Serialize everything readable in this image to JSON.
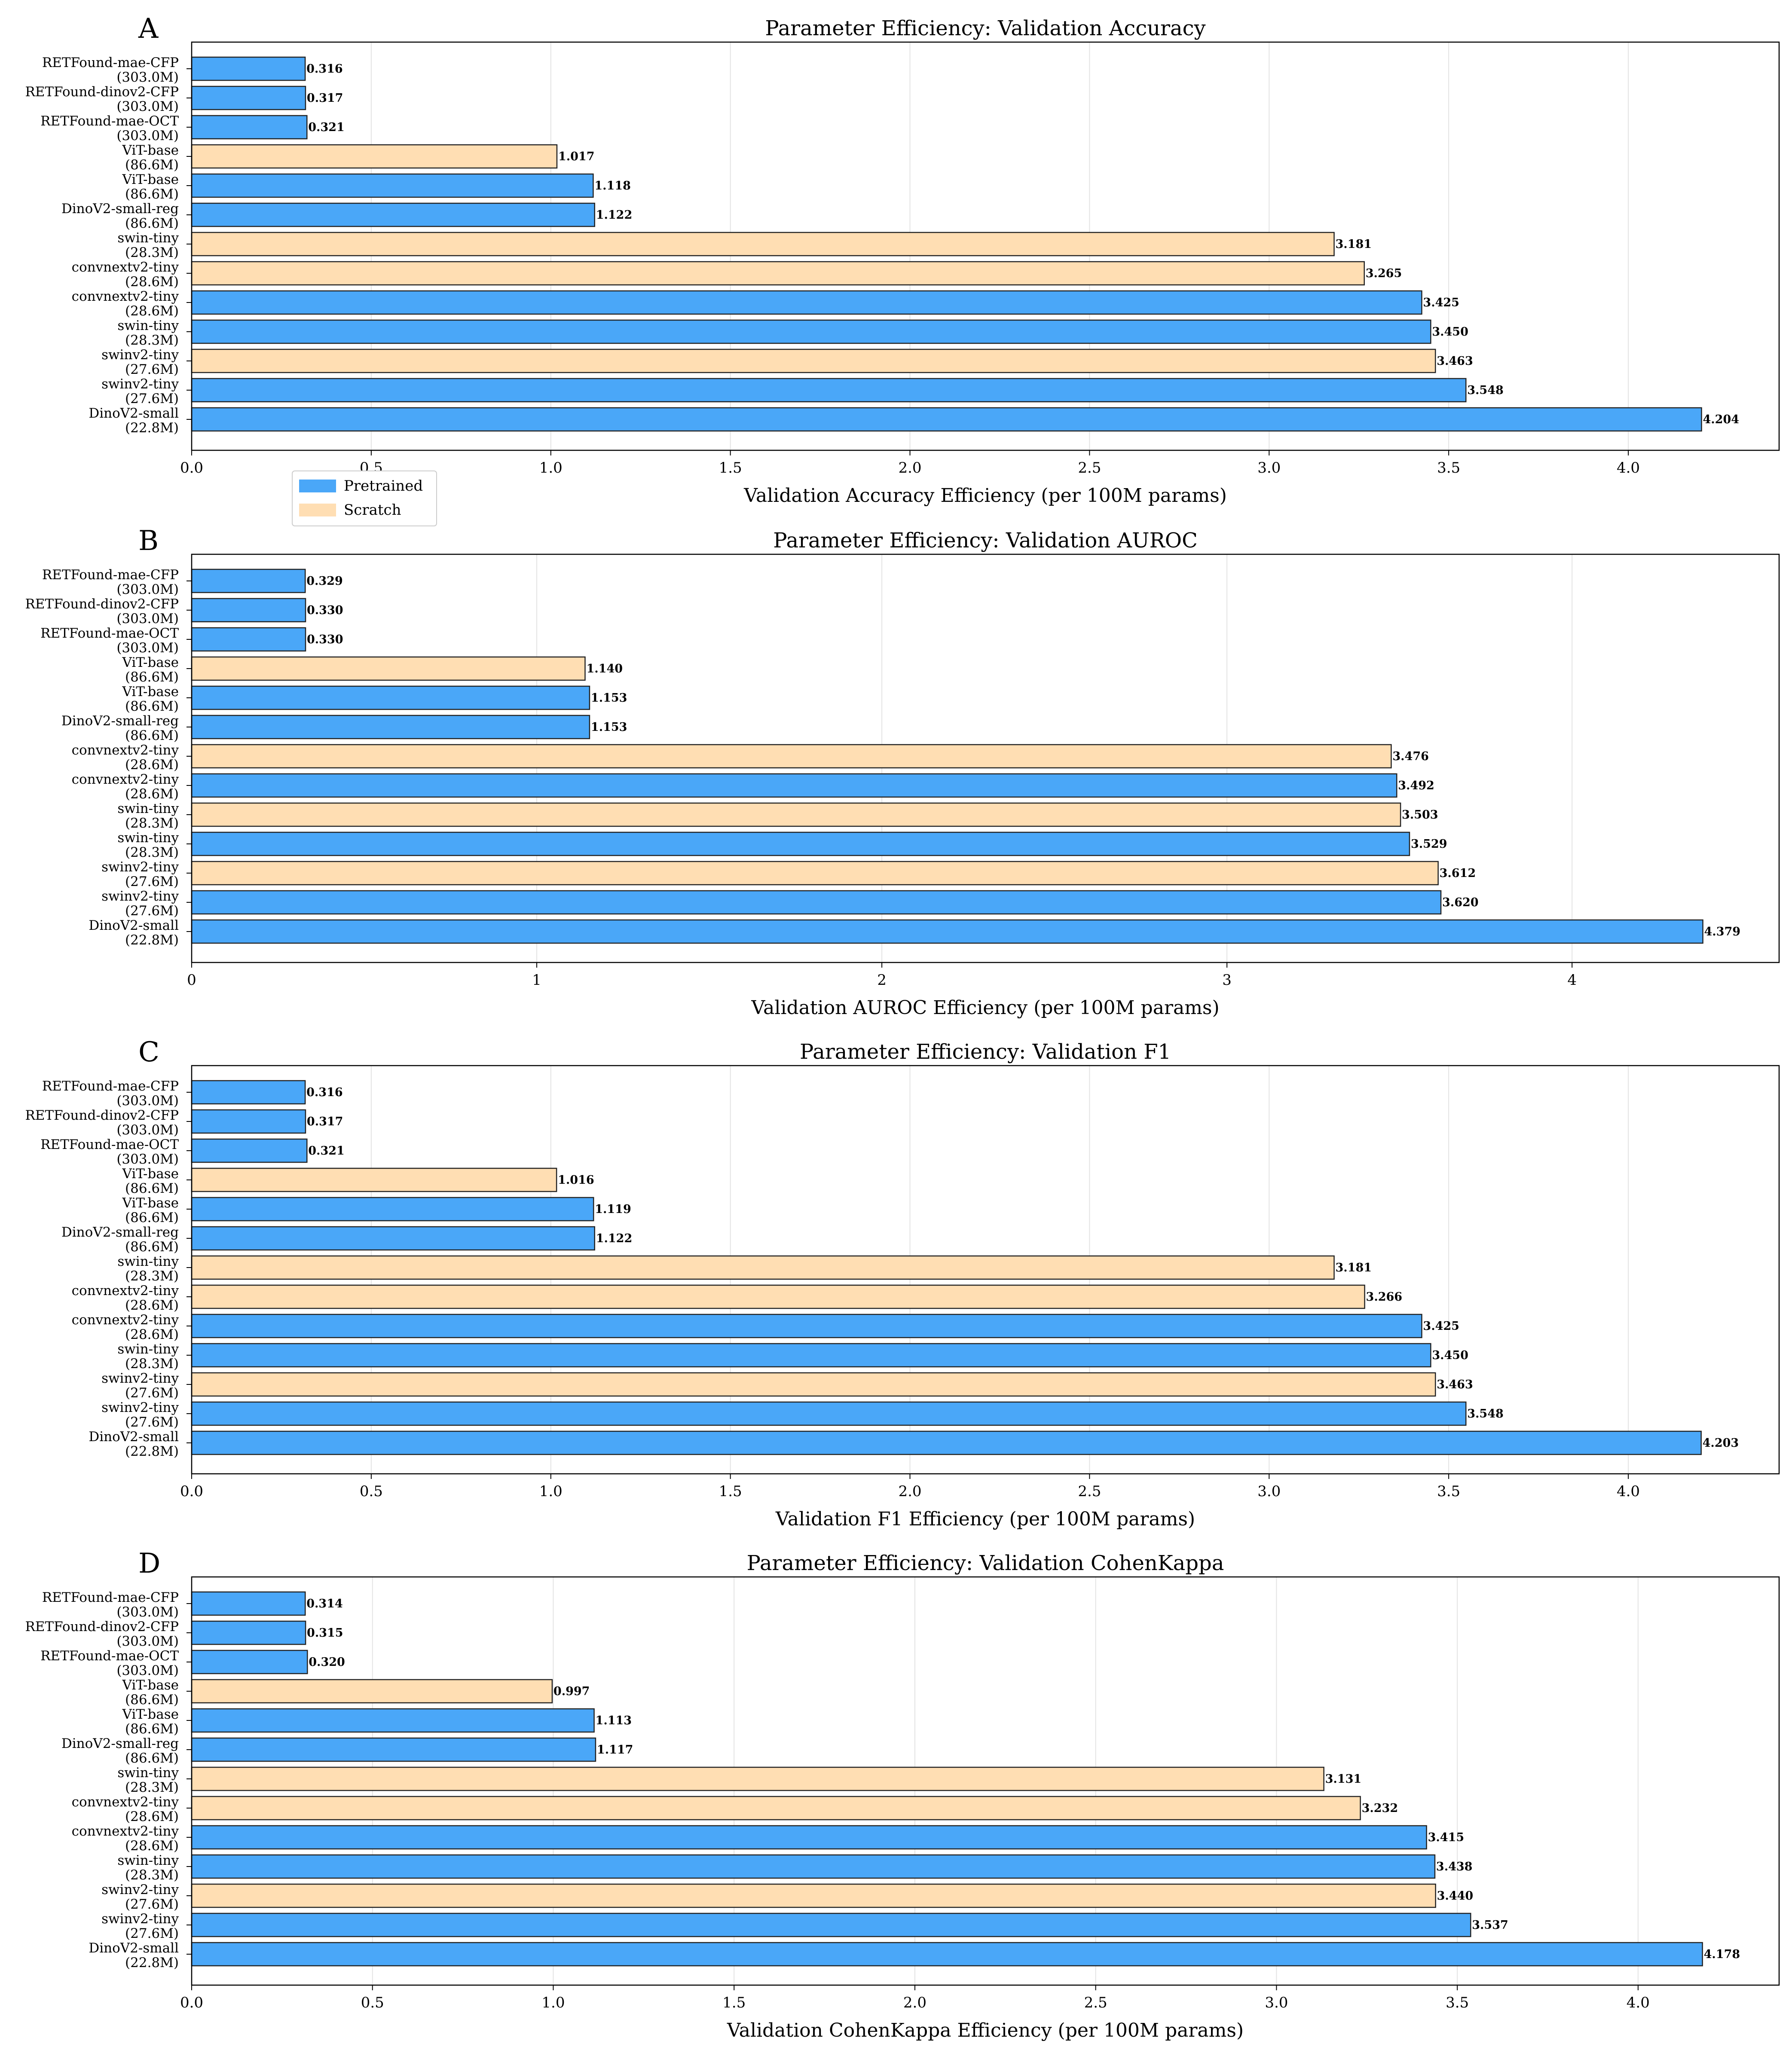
{
  "colors": {
    "pretrained": "#4AA7F8",
    "scratch": "#FFDEB3",
    "edge": "#222222",
    "grid": "#e3e3e3"
  },
  "legend": {
    "items": [
      {
        "label": "Pretrained",
        "type": "pretrained"
      },
      {
        "label": "Scratch",
        "type": "scratch"
      }
    ]
  },
  "chart_data": [
    {
      "type": "bar",
      "orientation": "horizontal",
      "panel": "A",
      "title": "Parameter Efficiency: Validation Accuracy",
      "xlabel": "Validation Accuracy Efficiency (per 100M params)",
      "xlim": [
        0,
        4.42
      ],
      "xticks": [
        0,
        0.5,
        1,
        1.5,
        2,
        2.5,
        3,
        3.5,
        4
      ],
      "xtick_labels": [
        "0.0",
        "0.5",
        "1.0",
        "1.5",
        "2.0",
        "2.5",
        "3.0",
        "3.5",
        "4.0"
      ],
      "bars": [
        {
          "name": "RETFound-mae-CFP",
          "params": "(303.0M)",
          "type": "pretrained",
          "value": 0.316,
          "label": "0.316"
        },
        {
          "name": "RETFound-dinov2-CFP",
          "params": "(303.0M)",
          "type": "pretrained",
          "value": 0.317,
          "label": "0.317"
        },
        {
          "name": "RETFound-mae-OCT",
          "params": "(303.0M)",
          "type": "pretrained",
          "value": 0.321,
          "label": "0.321"
        },
        {
          "name": "ViT-base",
          "params": "(86.6M)",
          "type": "scratch",
          "value": 1.017,
          "label": "1.017"
        },
        {
          "name": "ViT-base",
          "params": "(86.6M)",
          "type": "pretrained",
          "value": 1.118,
          "label": "1.118"
        },
        {
          "name": "DinoV2-small-reg",
          "params": "(86.6M)",
          "type": "pretrained",
          "value": 1.122,
          "label": "1.122"
        },
        {
          "name": "swin-tiny",
          "params": "(28.3M)",
          "type": "scratch",
          "value": 3.181,
          "label": "3.181"
        },
        {
          "name": "convnextv2-tiny",
          "params": "(28.6M)",
          "type": "scratch",
          "value": 3.265,
          "label": "3.265"
        },
        {
          "name": "convnextv2-tiny",
          "params": "(28.6M)",
          "type": "pretrained",
          "value": 3.425,
          "label": "3.425"
        },
        {
          "name": "swin-tiny",
          "params": "(28.3M)",
          "type": "pretrained",
          "value": 3.45,
          "label": "3.450"
        },
        {
          "name": "swinv2-tiny",
          "params": "(27.6M)",
          "type": "scratch",
          "value": 3.463,
          "label": "3.463"
        },
        {
          "name": "swinv2-tiny",
          "params": "(27.6M)",
          "type": "pretrained",
          "value": 3.548,
          "label": "3.548"
        },
        {
          "name": "DinoV2-small",
          "params": "(22.8M)",
          "type": "pretrained",
          "value": 4.204,
          "label": "4.204"
        }
      ]
    },
    {
      "type": "bar",
      "orientation": "horizontal",
      "panel": "B",
      "title": "Parameter Efficiency: Validation AUROC",
      "xlabel": "Validation AUROC Efficiency (per 100M params)",
      "xlim": [
        0,
        4.6
      ],
      "xticks": [
        0,
        1,
        2,
        3,
        4
      ],
      "xtick_labels": [
        "0",
        "1",
        "2",
        "3",
        "4"
      ],
      "bars": [
        {
          "name": "RETFound-mae-CFP",
          "params": "(303.0M)",
          "type": "pretrained",
          "value": 0.329,
          "label": "0.329"
        },
        {
          "name": "RETFound-dinov2-CFP",
          "params": "(303.0M)",
          "type": "pretrained",
          "value": 0.33,
          "label": "0.330"
        },
        {
          "name": "RETFound-mae-OCT",
          "params": "(303.0M)",
          "type": "pretrained",
          "value": 0.33,
          "label": "0.330"
        },
        {
          "name": "ViT-base",
          "params": "(86.6M)",
          "type": "scratch",
          "value": 1.14,
          "label": "1.140"
        },
        {
          "name": "ViT-base",
          "params": "(86.6M)",
          "type": "pretrained",
          "value": 1.153,
          "label": "1.153"
        },
        {
          "name": "DinoV2-small-reg",
          "params": "(86.6M)",
          "type": "pretrained",
          "value": 1.153,
          "label": "1.153"
        },
        {
          "name": "convnextv2-tiny",
          "params": "(28.6M)",
          "type": "scratch",
          "value": 3.476,
          "label": "3.476"
        },
        {
          "name": "convnextv2-tiny",
          "params": "(28.6M)",
          "type": "pretrained",
          "value": 3.492,
          "label": "3.492"
        },
        {
          "name": "swin-tiny",
          "params": "(28.3M)",
          "type": "scratch",
          "value": 3.503,
          "label": "3.503"
        },
        {
          "name": "swin-tiny",
          "params": "(28.3M)",
          "type": "pretrained",
          "value": 3.529,
          "label": "3.529"
        },
        {
          "name": "swinv2-tiny",
          "params": "(27.6M)",
          "type": "scratch",
          "value": 3.612,
          "label": "3.612"
        },
        {
          "name": "swinv2-tiny",
          "params": "(27.6M)",
          "type": "pretrained",
          "value": 3.62,
          "label": "3.620"
        },
        {
          "name": "DinoV2-small",
          "params": "(22.8M)",
          "type": "pretrained",
          "value": 4.379,
          "label": "4.379"
        }
      ]
    },
    {
      "type": "bar",
      "orientation": "horizontal",
      "panel": "C",
      "title": "Parameter Efficiency: Validation F1",
      "xlabel": "Validation F1 Efficiency (per 100M params)",
      "xlim": [
        0,
        4.42
      ],
      "xticks": [
        0,
        0.5,
        1,
        1.5,
        2,
        2.5,
        3,
        3.5,
        4
      ],
      "xtick_labels": [
        "0.0",
        "0.5",
        "1.0",
        "1.5",
        "2.0",
        "2.5",
        "3.0",
        "3.5",
        "4.0"
      ],
      "bars": [
        {
          "name": "RETFound-mae-CFP",
          "params": "(303.0M)",
          "type": "pretrained",
          "value": 0.316,
          "label": "0.316"
        },
        {
          "name": "RETFound-dinov2-CFP",
          "params": "(303.0M)",
          "type": "pretrained",
          "value": 0.317,
          "label": "0.317"
        },
        {
          "name": "RETFound-mae-OCT",
          "params": "(303.0M)",
          "type": "pretrained",
          "value": 0.321,
          "label": "0.321"
        },
        {
          "name": "ViT-base",
          "params": "(86.6M)",
          "type": "scratch",
          "value": 1.016,
          "label": "1.016"
        },
        {
          "name": "ViT-base",
          "params": "(86.6M)",
          "type": "pretrained",
          "value": 1.119,
          "label": "1.119"
        },
        {
          "name": "DinoV2-small-reg",
          "params": "(86.6M)",
          "type": "pretrained",
          "value": 1.122,
          "label": "1.122"
        },
        {
          "name": "swin-tiny",
          "params": "(28.3M)",
          "type": "scratch",
          "value": 3.181,
          "label": "3.181"
        },
        {
          "name": "convnextv2-tiny",
          "params": "(28.6M)",
          "type": "scratch",
          "value": 3.266,
          "label": "3.266"
        },
        {
          "name": "convnextv2-tiny",
          "params": "(28.6M)",
          "type": "pretrained",
          "value": 3.425,
          "label": "3.425"
        },
        {
          "name": "swin-tiny",
          "params": "(28.3M)",
          "type": "pretrained",
          "value": 3.45,
          "label": "3.450"
        },
        {
          "name": "swinv2-tiny",
          "params": "(27.6M)",
          "type": "scratch",
          "value": 3.463,
          "label": "3.463"
        },
        {
          "name": "swinv2-tiny",
          "params": "(27.6M)",
          "type": "pretrained",
          "value": 3.548,
          "label": "3.548"
        },
        {
          "name": "DinoV2-small",
          "params": "(22.8M)",
          "type": "pretrained",
          "value": 4.203,
          "label": "4.203"
        }
      ]
    },
    {
      "type": "bar",
      "orientation": "horizontal",
      "panel": "D",
      "title": "Parameter Efficiency: Validation CohenKappa",
      "xlabel": "Validation CohenKappa Efficiency (per 100M params)",
      "xlim": [
        0,
        4.39
      ],
      "xticks": [
        0,
        0.5,
        1,
        1.5,
        2,
        2.5,
        3,
        3.5,
        4
      ],
      "xtick_labels": [
        "0.0",
        "0.5",
        "1.0",
        "1.5",
        "2.0",
        "2.5",
        "3.0",
        "3.5",
        "4.0"
      ],
      "bars": [
        {
          "name": "RETFound-mae-CFP",
          "params": "(303.0M)",
          "type": "pretrained",
          "value": 0.314,
          "label": "0.314"
        },
        {
          "name": "RETFound-dinov2-CFP",
          "params": "(303.0M)",
          "type": "pretrained",
          "value": 0.315,
          "label": "0.315"
        },
        {
          "name": "RETFound-mae-OCT",
          "params": "(303.0M)",
          "type": "pretrained",
          "value": 0.32,
          "label": "0.320"
        },
        {
          "name": "ViT-base",
          "params": "(86.6M)",
          "type": "scratch",
          "value": 0.997,
          "label": "0.997"
        },
        {
          "name": "ViT-base",
          "params": "(86.6M)",
          "type": "pretrained",
          "value": 1.113,
          "label": "1.113"
        },
        {
          "name": "DinoV2-small-reg",
          "params": "(86.6M)",
          "type": "pretrained",
          "value": 1.117,
          "label": "1.117"
        },
        {
          "name": "swin-tiny",
          "params": "(28.3M)",
          "type": "scratch",
          "value": 3.131,
          "label": "3.131"
        },
        {
          "name": "convnextv2-tiny",
          "params": "(28.6M)",
          "type": "scratch",
          "value": 3.232,
          "label": "3.232"
        },
        {
          "name": "convnextv2-tiny",
          "params": "(28.6M)",
          "type": "pretrained",
          "value": 3.415,
          "label": "3.415"
        },
        {
          "name": "swin-tiny",
          "params": "(28.3M)",
          "type": "pretrained",
          "value": 3.438,
          "label": "3.438"
        },
        {
          "name": "swinv2-tiny",
          "params": "(27.6M)",
          "type": "scratch",
          "value": 3.44,
          "label": "3.440"
        },
        {
          "name": "swinv2-tiny",
          "params": "(27.6M)",
          "type": "pretrained",
          "value": 3.537,
          "label": "3.537"
        },
        {
          "name": "DinoV2-small",
          "params": "(22.8M)",
          "type": "pretrained",
          "value": 4.178,
          "label": "4.178"
        }
      ]
    }
  ]
}
